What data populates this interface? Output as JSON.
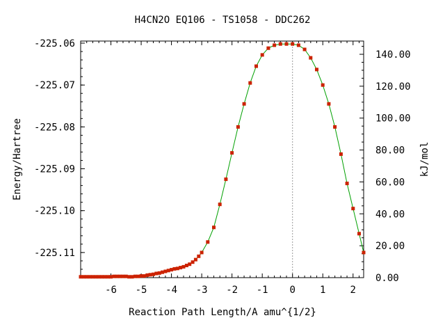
{
  "title": "H4CN2O   EQ106 - TS1058 - DDC262",
  "chart_data": {
    "type": "line",
    "title": "H4CN2O   EQ106 - TS1058 - DDC262",
    "xlabel": "Reaction Path Length/A amu^{1/2}",
    "ylabel": "Energy/Hartree",
    "y2label": "kJ/mol",
    "xlim": [
      -7.0,
      2.35
    ],
    "ylim": [
      -225.116,
      -225.0595
    ],
    "y2lim": [
      0.0,
      148.3
    ],
    "x_ticks": [
      -6,
      -5,
      -4,
      -3,
      -2,
      -1,
      0,
      1,
      2
    ],
    "x_tick_labels": [
      "-6",
      "-5",
      "-4",
      "-3",
      "-2",
      "-1",
      "0",
      "1",
      "2"
    ],
    "y_ticks": [
      -225.11,
      -225.1,
      -225.09,
      -225.08,
      -225.07,
      -225.06
    ],
    "y_tick_labels": [
      "-225.11",
      "-225.10",
      "-225.09",
      "-225.08",
      "-225.07",
      "-225.06"
    ],
    "y2_ticks": [
      0,
      20,
      40,
      60,
      80,
      100,
      120,
      140
    ],
    "y2_tick_labels": [
      "0.00",
      "20.00",
      "40.00",
      "60.00",
      "80.00",
      "100.00",
      "120.00",
      "140.00"
    ],
    "ts_marker_x": 0,
    "colors": {
      "line": "#00a000",
      "marker": "#cc2200",
      "axis": "#000000",
      "ts_line": "#999999"
    },
    "series": [
      {
        "x": [
          -7.0,
          -6.9,
          -6.8,
          -6.7,
          -6.6,
          -6.5,
          -6.4,
          -6.3,
          -6.2,
          -6.1,
          -6.0,
          -5.9,
          -5.8,
          -5.7,
          -5.6,
          -5.5,
          -5.4,
          -5.3,
          -5.2,
          -5.1,
          -5.0,
          -4.9,
          -4.8,
          -4.7,
          -4.6,
          -4.5,
          -4.4,
          -4.3,
          -4.2,
          -4.1,
          -4.0,
          -3.9,
          -3.8,
          -3.7,
          -3.6,
          -3.5,
          -3.4,
          -3.3,
          -3.2,
          -3.1,
          -3.0,
          -2.8,
          -2.6,
          -2.4,
          -2.2,
          -2.0,
          -1.8,
          -1.6,
          -1.4,
          -1.2,
          -1.0,
          -0.8,
          -0.6,
          -0.4,
          -0.2,
          0.0,
          0.2,
          0.4,
          0.6,
          0.8,
          1.0,
          1.2,
          1.4,
          1.6,
          1.8,
          2.0,
          2.2,
          2.35
        ],
        "y": [
          -225.1158,
          -225.1158,
          -225.1158,
          -225.1158,
          -225.1158,
          -225.1158,
          -225.1158,
          -225.1158,
          -225.1158,
          -225.1158,
          -225.1158,
          -225.1157,
          -225.1157,
          -225.1157,
          -225.1157,
          -225.1157,
          -225.1158,
          -225.1158,
          -225.1157,
          -225.1157,
          -225.1156,
          -225.1156,
          -225.1154,
          -225.1153,
          -225.1152,
          -225.115,
          -225.1149,
          -225.1147,
          -225.1145,
          -225.1143,
          -225.1141,
          -225.1139,
          -225.1138,
          -225.1136,
          -225.1134,
          -225.1131,
          -225.1128,
          -225.1123,
          -225.1117,
          -225.1109,
          -225.11,
          -225.1075,
          -225.104,
          -225.0985,
          -225.0925,
          -225.0862,
          -225.08,
          -225.0745,
          -225.0695,
          -225.0655,
          -225.0628,
          -225.0612,
          -225.0605,
          -225.0602,
          -225.0602,
          -225.0602,
          -225.0605,
          -225.0615,
          -225.0635,
          -225.0663,
          -225.07,
          -225.0745,
          -225.08,
          -225.0865,
          -225.0935,
          -225.0995,
          -225.1055,
          -225.11
        ]
      }
    ]
  }
}
